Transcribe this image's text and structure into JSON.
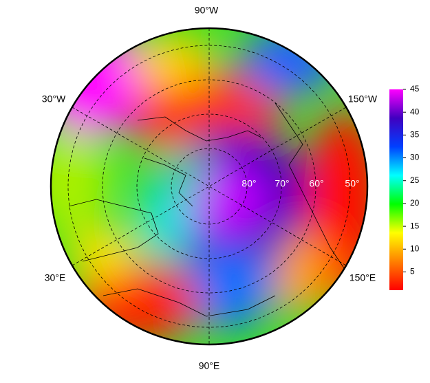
{
  "map": {
    "longitude_labels": [
      "90°W",
      "30°W",
      "150°W",
      "30°E",
      "150°E",
      "90°E"
    ],
    "latitude_labels": [
      "80°",
      "70°",
      "60°",
      "50°"
    ]
  },
  "colorbar": {
    "lim": [
      1,
      45
    ],
    "ticks": [
      5,
      10,
      15,
      20,
      25,
      30,
      35,
      40,
      45
    ],
    "colors": [
      "#ff0000",
      "#ff8000",
      "#ffff00",
      "#00ff00",
      "#00ffff",
      "#0040ff",
      "#4000c0",
      "#ff00ff"
    ]
  }
}
